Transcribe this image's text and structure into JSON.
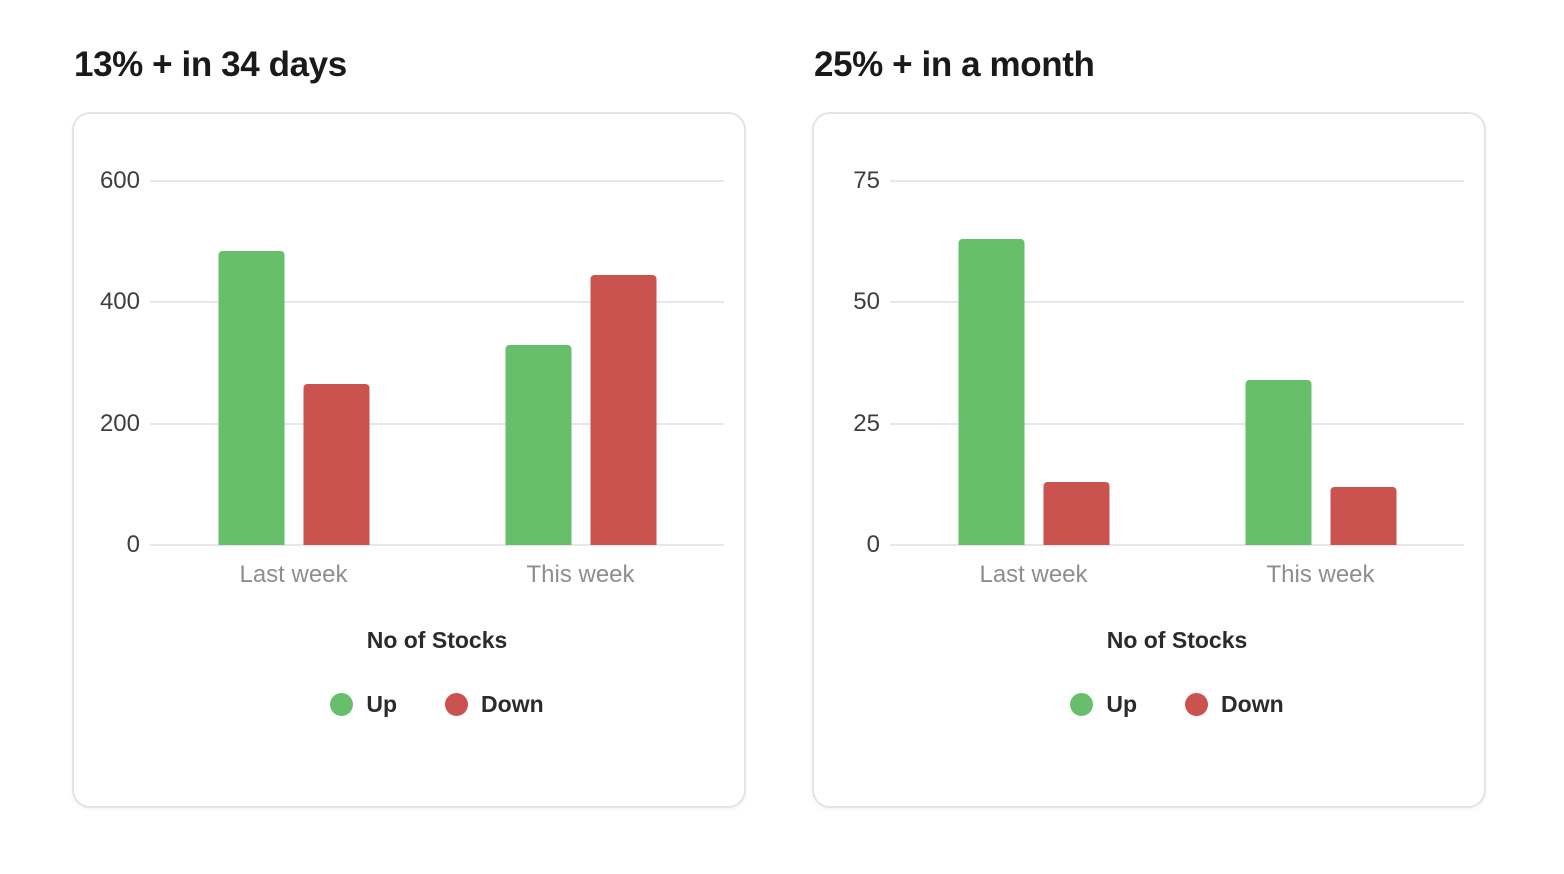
{
  "page": {
    "background": "#ffffff"
  },
  "chart_data": [
    {
      "type": "bar",
      "title": "13% + in 34 days",
      "categories": [
        "Last week",
        "This week"
      ],
      "series": [
        {
          "name": "Up",
          "color": "#67be6b",
          "values": [
            485,
            330
          ]
        },
        {
          "name": "Down",
          "color": "#cb534f",
          "values": [
            265,
            445
          ]
        }
      ],
      "xlabel": "No of Stocks",
      "ylabel": "",
      "ylim": [
        0,
        600
      ],
      "yticks": [
        0,
        200,
        400,
        600
      ],
      "grid": true,
      "legend_position": "bottom",
      "legend_marker": "circle",
      "tick_color": "#3e3e40",
      "category_label_color": "#8e8e90",
      "gridline_color": "#e7e7e9"
    },
    {
      "type": "bar",
      "title": "25% + in a month",
      "categories": [
        "Last week",
        "This week"
      ],
      "series": [
        {
          "name": "Up",
          "color": "#67be6b",
          "values": [
            63,
            34
          ]
        },
        {
          "name": "Down",
          "color": "#cb534f",
          "values": [
            13,
            12
          ]
        }
      ],
      "xlabel": "No of Stocks",
      "ylabel": "",
      "ylim": [
        0,
        75
      ],
      "yticks": [
        0,
        25,
        50,
        75
      ],
      "grid": true,
      "legend_position": "bottom",
      "legend_marker": "circle",
      "tick_color": "#3e3e40",
      "category_label_color": "#8e8e90",
      "gridline_color": "#e7e7e9"
    }
  ]
}
